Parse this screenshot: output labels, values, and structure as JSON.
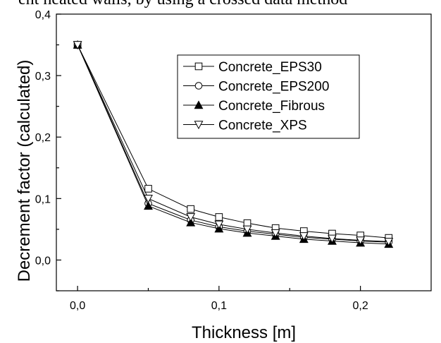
{
  "page": {
    "top_text": "ent heated walls, by using a crossed data method"
  },
  "chart_data": {
    "type": "line",
    "title": "",
    "xlabel": "Thickness [m]",
    "ylabel": "Decrement factor (calculated)",
    "xlim": [
      -0.015,
      0.25
    ],
    "ylim": [
      -0.05,
      0.4
    ],
    "x_ticks": [
      0.0,
      0.1,
      0.2
    ],
    "x_tick_labels": [
      "0,0",
      "0,1",
      "0,2"
    ],
    "y_ticks": [
      0.0,
      0.1,
      0.2,
      0.3,
      0.4
    ],
    "y_tick_labels": [
      "0,0",
      "0,1",
      "0,2",
      "0,3",
      "0,4"
    ],
    "grid": false,
    "legend_position": "top-right",
    "x": [
      0.0,
      0.05,
      0.08,
      0.1,
      0.12,
      0.14,
      0.16,
      0.18,
      0.2,
      0.22
    ],
    "series": [
      {
        "name": "Concrete_EPS30",
        "marker": "square-open",
        "values": [
          0.35,
          0.116,
          0.083,
          0.07,
          0.06,
          0.052,
          0.047,
          0.043,
          0.04,
          0.036
        ]
      },
      {
        "name": "Concrete_EPS200",
        "marker": "circle-open",
        "values": [
          0.35,
          0.092,
          0.065,
          0.054,
          0.047,
          0.042,
          0.037,
          0.034,
          0.031,
          0.029
        ]
      },
      {
        "name": "Concrete_Fibrous",
        "marker": "triangle-up-filled",
        "values": [
          0.35,
          0.088,
          0.061,
          0.051,
          0.044,
          0.039,
          0.034,
          0.031,
          0.028,
          0.026
        ]
      },
      {
        "name": "Concrete_XPS",
        "marker": "triangle-down-open",
        "values": [
          0.35,
          0.1,
          0.07,
          0.058,
          0.05,
          0.044,
          0.039,
          0.035,
          0.032,
          0.03
        ]
      }
    ]
  }
}
